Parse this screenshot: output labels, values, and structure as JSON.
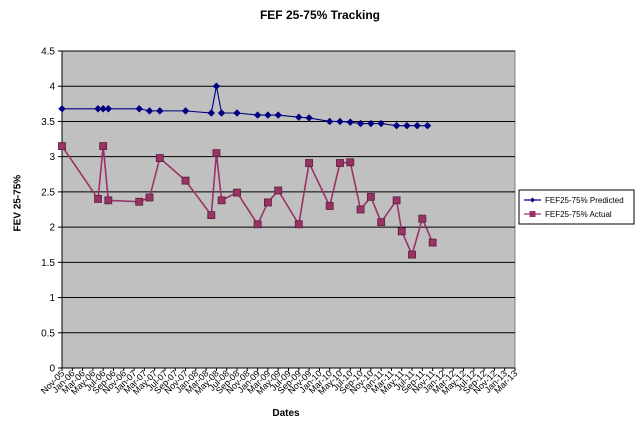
{
  "chart_data": {
    "type": "line",
    "title": "FEF 25-75% Tracking",
    "xlabel": "Dates",
    "ylabel": "FEV 25-75%",
    "ylim": [
      0,
      4.5
    ],
    "yticks": [
      "0",
      "0.5",
      "1",
      "1.5",
      "2",
      "2.5",
      "3",
      "3.5",
      "4",
      "4.5"
    ],
    "categories": [
      "Nov-05",
      "Jan-06",
      "Mar-06",
      "May-06",
      "Jul-06",
      "Sep-06",
      "Nov-06",
      "Jan-07",
      "Mar-07",
      "May-07",
      "Jul-07",
      "Sep-07",
      "Nov-07",
      "Jan-08",
      "Mar-08",
      "May-08",
      "Jul-08",
      "Sep-08",
      "Nov-08",
      "Jan-09",
      "Mar-09",
      "May-09",
      "Jul-09",
      "Sep-09",
      "Nov-09",
      "Jan-10",
      "Mar-10",
      "May-10",
      "Jul-10",
      "Sep-10",
      "Nov-10",
      "Jan-11",
      "Mar-11",
      "May-11",
      "Jul-11",
      "Sep-11",
      "Nov-11",
      "Jan-12",
      "Mar-12",
      "May-12",
      "Jul-12",
      "Sep-12",
      "Nov-12",
      "Jan-13",
      "Mar-13"
    ],
    "grid": true,
    "legend_position": "right",
    "background_color": "#c0c0c0",
    "series": [
      {
        "name": "FEF25-75% Predicted",
        "color": "#000080",
        "marker": "diamond",
        "points": [
          {
            "x": "2005-11",
            "y": 3.68
          },
          {
            "x": "2006-06",
            "y": 3.68
          },
          {
            "x": "2006-07",
            "y": 3.68
          },
          {
            "x": "2006-08",
            "y": 3.68
          },
          {
            "x": "2007-02",
            "y": 3.68
          },
          {
            "x": "2007-04",
            "y": 3.65
          },
          {
            "x": "2007-06",
            "y": 3.65
          },
          {
            "x": "2007-11",
            "y": 3.65
          },
          {
            "x": "2008-04",
            "y": 3.62
          },
          {
            "x": "2008-05",
            "y": 4.0
          },
          {
            "x": "2008-06",
            "y": 3.62
          },
          {
            "x": "2008-09",
            "y": 3.62
          },
          {
            "x": "2009-01",
            "y": 3.59
          },
          {
            "x": "2009-03",
            "y": 3.59
          },
          {
            "x": "2009-05",
            "y": 3.59
          },
          {
            "x": "2009-09",
            "y": 3.56
          },
          {
            "x": "2009-11",
            "y": 3.55
          },
          {
            "x": "2010-03",
            "y": 3.5
          },
          {
            "x": "2010-05",
            "y": 3.5
          },
          {
            "x": "2010-07",
            "y": 3.49
          },
          {
            "x": "2010-09",
            "y": 3.47
          },
          {
            "x": "2010-11",
            "y": 3.47
          },
          {
            "x": "2011-01",
            "y": 3.47
          },
          {
            "x": "2011-04",
            "y": 3.44
          },
          {
            "x": "2011-06",
            "y": 3.44
          },
          {
            "x": "2011-08",
            "y": 3.44
          },
          {
            "x": "2011-10",
            "y": 3.44
          }
        ]
      },
      {
        "name": "FEF25-75% Actual",
        "color": "#993366",
        "marker": "square",
        "points": [
          {
            "x": "2005-11",
            "y": 3.15
          },
          {
            "x": "2006-06",
            "y": 2.4
          },
          {
            "x": "2006-07",
            "y": 3.15
          },
          {
            "x": "2006-08",
            "y": 2.38
          },
          {
            "x": "2007-02",
            "y": 2.36
          },
          {
            "x": "2007-04",
            "y": 2.42
          },
          {
            "x": "2007-06",
            "y": 2.98
          },
          {
            "x": "2007-11",
            "y": 2.66
          },
          {
            "x": "2008-04",
            "y": 2.17
          },
          {
            "x": "2008-05",
            "y": 3.05
          },
          {
            "x": "2008-06",
            "y": 2.38
          },
          {
            "x": "2008-09",
            "y": 2.49
          },
          {
            "x": "2009-01",
            "y": 2.04
          },
          {
            "x": "2009-03",
            "y": 2.35
          },
          {
            "x": "2009-05",
            "y": 2.52
          },
          {
            "x": "2009-09",
            "y": 2.04
          },
          {
            "x": "2009-11",
            "y": 2.91
          },
          {
            "x": "2010-03",
            "y": 2.3
          },
          {
            "x": "2010-05",
            "y": 2.91
          },
          {
            "x": "2010-07",
            "y": 2.92
          },
          {
            "x": "2010-09",
            "y": 2.25
          },
          {
            "x": "2010-11",
            "y": 2.43
          },
          {
            "x": "2011-01",
            "y": 2.07
          },
          {
            "x": "2011-04",
            "y": 2.38
          },
          {
            "x": "2011-05",
            "y": 1.94
          },
          {
            "x": "2011-07",
            "y": 1.61
          },
          {
            "x": "2011-09",
            "y": 2.12
          },
          {
            "x": "2011-11",
            "y": 1.78
          }
        ]
      }
    ]
  }
}
